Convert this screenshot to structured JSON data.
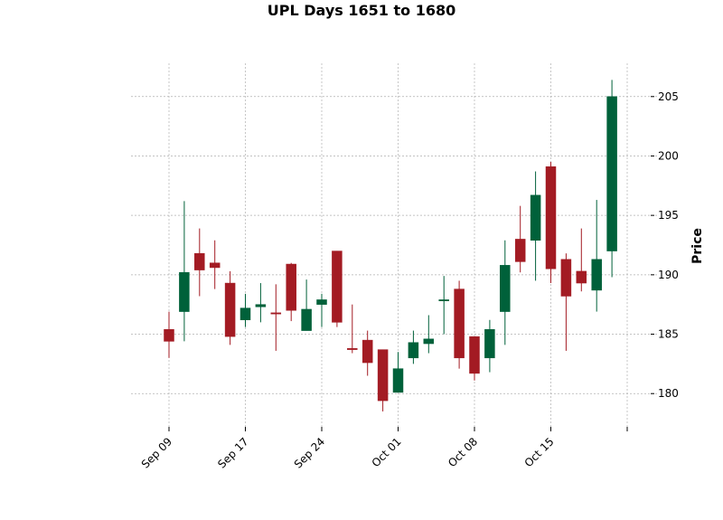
{
  "chart_data": {
    "type": "candlestick",
    "title": "UPL Days 1651 to 1680",
    "ylabel": "Price",
    "xlabel": "",
    "ylim": [
      177.2,
      207.8
    ],
    "grid": true,
    "colors": {
      "up": "#00613a",
      "down": "#a31b23",
      "grid": "#b0b0b0"
    },
    "x_tick_labels": [
      {
        "index": 0,
        "label": "Sep 09"
      },
      {
        "index": 5,
        "label": "Sep 17"
      },
      {
        "index": 10,
        "label": "Sep 24"
      },
      {
        "index": 15,
        "label": "Oct 01"
      },
      {
        "index": 20,
        "label": "Oct 08"
      },
      {
        "index": 25,
        "label": "Oct 15"
      },
      {
        "index": 30,
        "label": ""
      }
    ],
    "y_ticks": [
      180,
      185,
      190,
      195,
      200,
      205
    ],
    "candles": [
      {
        "open": 185.4,
        "high": 186.9,
        "low": 183.0,
        "close": 184.4
      },
      {
        "open": 186.9,
        "high": 196.2,
        "low": 184.4,
        "close": 190.2
      },
      {
        "open": 191.8,
        "high": 193.9,
        "low": 188.2,
        "close": 190.4
      },
      {
        "open": 191.0,
        "high": 192.9,
        "low": 188.8,
        "close": 190.6
      },
      {
        "open": 189.3,
        "high": 190.3,
        "low": 184.1,
        "close": 184.8
      },
      {
        "open": 186.2,
        "high": 188.4,
        "low": 185.6,
        "close": 187.2
      },
      {
        "open": 187.3,
        "high": 189.3,
        "low": 186.0,
        "close": 187.5
      },
      {
        "open": 186.8,
        "high": 189.2,
        "low": 183.6,
        "close": 186.7
      },
      {
        "open": 190.9,
        "high": 191.0,
        "low": 186.1,
        "close": 187.0
      },
      {
        "open": 185.3,
        "high": 189.6,
        "low": 185.3,
        "close": 187.1
      },
      {
        "open": 187.5,
        "high": 188.4,
        "low": 185.6,
        "close": 187.9
      },
      {
        "open": 192.0,
        "high": 192.0,
        "low": 185.6,
        "close": 186.0
      },
      {
        "open": 183.8,
        "high": 187.5,
        "low": 183.4,
        "close": 183.7
      },
      {
        "open": 184.5,
        "high": 185.3,
        "low": 181.5,
        "close": 182.6
      },
      {
        "open": 183.7,
        "high": 183.7,
        "low": 178.5,
        "close": 179.4
      },
      {
        "open": 180.1,
        "high": 183.5,
        "low": 180.1,
        "close": 182.1
      },
      {
        "open": 183.0,
        "high": 185.3,
        "low": 182.5,
        "close": 184.3
      },
      {
        "open": 184.2,
        "high": 186.6,
        "low": 183.4,
        "close": 184.6
      },
      {
        "open": 187.8,
        "high": 189.9,
        "low": 185.0,
        "close": 187.9
      },
      {
        "open": 188.8,
        "high": 189.5,
        "low": 182.1,
        "close": 183.0
      },
      {
        "open": 184.8,
        "high": 184.8,
        "low": 181.1,
        "close": 181.7
      },
      {
        "open": 183.0,
        "high": 186.2,
        "low": 181.8,
        "close": 185.4
      },
      {
        "open": 186.9,
        "high": 192.9,
        "low": 184.1,
        "close": 190.8
      },
      {
        "open": 193.0,
        "high": 195.8,
        "low": 190.2,
        "close": 191.1
      },
      {
        "open": 192.9,
        "high": 198.7,
        "low": 189.5,
        "close": 196.7
      },
      {
        "open": 199.1,
        "high": 199.5,
        "low": 189.3,
        "close": 190.5
      },
      {
        "open": 191.3,
        "high": 191.8,
        "low": 183.6,
        "close": 188.2
      },
      {
        "open": 190.3,
        "high": 193.9,
        "low": 188.6,
        "close": 189.3
      },
      {
        "open": 188.7,
        "high": 196.3,
        "low": 186.9,
        "close": 191.3
      },
      {
        "open": 192.0,
        "high": 206.4,
        "low": 189.8,
        "close": 205.0
      }
    ]
  }
}
